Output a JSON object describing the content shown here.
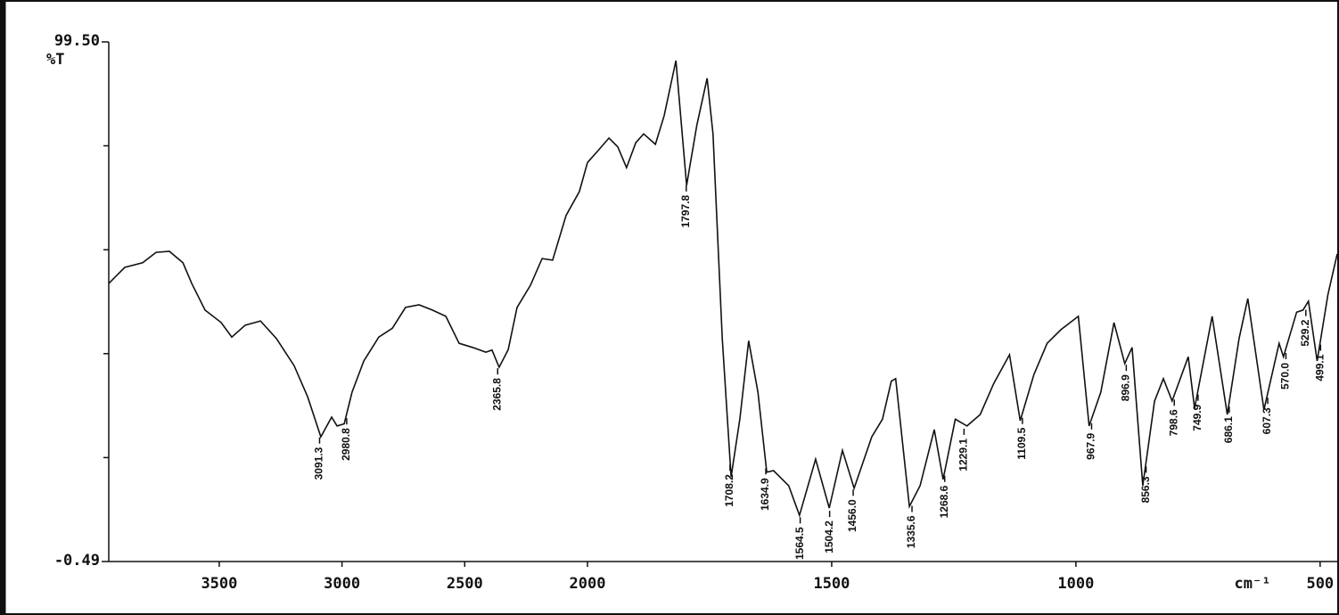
{
  "chart_data": [
    {
      "type": "line",
      "ylabel": "%T",
      "xlim": [
        3950,
        2000
      ],
      "xticks": [
        3500,
        3000,
        2500
      ],
      "ylim": [
        -0.49,
        99.5
      ],
      "yticks": [
        {
          "value": -0.49,
          "label": "-0.49"
        },
        {
          "value": 99.5,
          "label": "99.50"
        }
      ],
      "yminorticks": [
        19.51,
        39.51,
        59.51,
        79.51
      ],
      "color": "#111111",
      "x": [
        3950,
        3921,
        3885,
        3812,
        3757,
        3703,
        3648,
        3612,
        3558,
        3492,
        3449,
        3394,
        3332,
        3267,
        3195,
        3140,
        3086,
        3042,
        3020,
        2991,
        2959,
        2911,
        2850,
        2795,
        2741,
        2686,
        2632,
        2577,
        2523,
        2468,
        2414,
        2389,
        2360,
        2323,
        2287,
        2232,
        2185,
        2142,
        2087,
        2033,
        2000
      ],
      "values": [
        53.0,
        54.4,
        56.1,
        57.0,
        59.0,
        59.2,
        57.0,
        53.0,
        47.9,
        45.5,
        42.7,
        45.0,
        45.8,
        42.4,
        37.2,
        31.2,
        23.5,
        27.3,
        25.6,
        26.0,
        32.1,
        38.1,
        42.7,
        44.4,
        48.4,
        48.9,
        47.9,
        46.7,
        41.5,
        40.7,
        39.8,
        40.2,
        36.9,
        40.3,
        48.4,
        52.7,
        57.8,
        57.5,
        66.1,
        70.7,
        76.3
      ],
      "peaks": [
        3091.3,
        2980.8,
        2365.8
      ],
      "peak_labels": [
        "3091.3",
        "2980.8",
        "2365.8"
      ]
    },
    {
      "type": "line",
      "xlabel": "cm⁻¹",
      "xlim": [
        2000,
        465
      ],
      "xticks": [
        2000,
        1500,
        1000,
        500
      ],
      "color": "#111111",
      "x": [
        2000,
        1980,
        1956,
        1938,
        1920,
        1901,
        1885,
        1861,
        1843,
        1819,
        1797,
        1776,
        1755,
        1743,
        1724,
        1706,
        1688,
        1670,
        1651,
        1633,
        1619,
        1588,
        1566,
        1533,
        1505,
        1478,
        1454,
        1418,
        1396,
        1378,
        1369,
        1341,
        1319,
        1290,
        1272,
        1247,
        1223,
        1196,
        1168,
        1136,
        1114,
        1086,
        1059,
        1031,
        995,
        973,
        949,
        922,
        900,
        885,
        863,
        839,
        821,
        803,
        770,
        757,
        721,
        690,
        666,
        648,
        615,
        584,
        575,
        548,
        535,
        524,
        506,
        484,
        465
      ],
      "values": [
        76.3,
        78.4,
        81.0,
        79.3,
        75.3,
        80.1,
        81.8,
        79.8,
        85.3,
        95.9,
        71.9,
        83.5,
        92.5,
        81.8,
        42.4,
        15.8,
        26.9,
        42.0,
        32.1,
        16.7,
        17.0,
        14.1,
        8.4,
        19.2,
        9.8,
        20.9,
        13.6,
        23.5,
        26.9,
        34.2,
        34.7,
        10.1,
        14.1,
        24.9,
        15.3,
        26.9,
        25.6,
        27.8,
        33.8,
        39.3,
        26.6,
        35.5,
        41.5,
        44.1,
        46.7,
        25.6,
        32.1,
        45.5,
        37.6,
        40.7,
        14.1,
        30.4,
        34.7,
        30.4,
        38.9,
        29.0,
        46.7,
        27.8,
        42.4,
        50.1,
        28.7,
        41.5,
        38.9,
        47.5,
        47.9,
        49.6,
        38.1,
        50.9,
        58.7
      ],
      "peaks": [
        1797.8,
        1708.2,
        1634.9,
        1564.5,
        1504.2,
        1456.0,
        1335.6,
        1268.6,
        1229.1,
        1109.5,
        967.9,
        896.9,
        856.3,
        798.6,
        749.9,
        686.1,
        607.3,
        570.0,
        529.2,
        499.1
      ],
      "peak_labels": [
        "1797.8",
        "1708.2",
        "1634.9",
        "1564.5",
        "1504.2",
        "1456.0",
        "1335.6",
        "1268.6",
        "1229.1",
        "1109.5",
        "967.9",
        "896.9",
        "856.3",
        "798.6",
        "749.9",
        "686.1",
        "607.3",
        "570.0",
        "529.2",
        "499.1"
      ]
    }
  ]
}
